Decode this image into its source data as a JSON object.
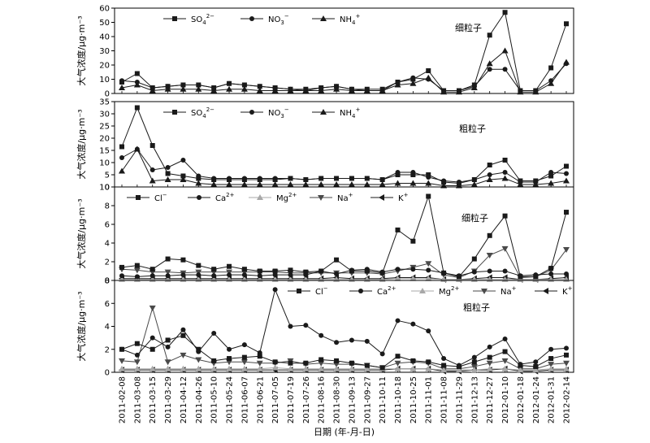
{
  "dates": [
    "2011-02-08",
    "2011-03-08",
    "2011-03-15",
    "2011-03-29",
    "2011-04-12",
    "2011-04-26",
    "2011-05-10",
    "2011-05-24",
    "2011-06-07",
    "2011-06-21",
    "2011-07-05",
    "2011-07-19",
    "2011-07-26",
    "2011-08-16",
    "2011-08-30",
    "2011-09-13",
    "2011-09-27",
    "2011-10-11",
    "2011-10-18",
    "2011-10-25",
    "2011-11-01",
    "2011-11-08",
    "2011-11-29",
    "2011-12-13",
    "2011-12-27",
    "2012-01-10",
    "2012-01-18",
    "2012-01-24",
    "2012-01-31",
    "2012-02-14"
  ],
  "shared_xlabel": "日期 (年-月-日)",
  "colors": {
    "black": "#1a1a1a",
    "gray": "#a8a8a8",
    "dark_gray": "#4a4a4a"
  },
  "chart_data": [
    {
      "type": "line",
      "panel_label": "细粒子",
      "ylabel": "大气浓度/μg·m⁻³",
      "ylim": [
        0,
        60
      ],
      "yticks": [
        "0",
        "10",
        "20",
        "30",
        "40",
        "50",
        "60"
      ],
      "legend_placement": "top",
      "series": [
        {
          "name": "SO4",
          "label_base": "SO",
          "label_sub": "4",
          "label_sup": "2−",
          "marker": "square",
          "color": "black",
          "values": [
            8,
            14,
            4,
            5,
            6,
            6,
            4,
            7,
            6,
            5,
            4,
            3,
            3,
            4,
            5,
            3,
            3,
            3,
            8,
            10,
            16,
            2,
            2,
            6,
            41,
            57,
            2,
            2,
            18,
            49
          ]
        },
        {
          "name": "NO3",
          "label_base": "NO",
          "label_sub": "3",
          "label_sup": "−",
          "marker": "circle",
          "color": "black",
          "values": [
            9,
            8,
            4,
            5,
            6,
            6,
            4,
            7,
            6,
            5,
            4,
            3,
            2,
            4,
            5,
            3,
            2,
            2,
            8,
            11,
            10,
            2,
            2,
            5,
            17,
            17,
            2,
            2,
            9,
            21
          ]
        },
        {
          "name": "NH4",
          "label_base": "NH",
          "label_sub": "4",
          "label_sup": "+",
          "marker": "triangle-up",
          "color": "black",
          "values": [
            4,
            6,
            2,
            3,
            3,
            3,
            2,
            3,
            3,
            2,
            2,
            2,
            2,
            2,
            3,
            2,
            2,
            2,
            6,
            7,
            11,
            1,
            1,
            4,
            21,
            30,
            1,
            1,
            7,
            22
          ]
        }
      ]
    },
    {
      "type": "line",
      "panel_label": "粗粒子",
      "ylabel": "大气浓度/μg·m⁻³",
      "ylim": [
        0,
        35
      ],
      "yticks": [
        "0",
        "5",
        "10",
        "15",
        "20",
        "25",
        "30",
        "35"
      ],
      "legend_placement": "top",
      "series": [
        {
          "name": "SO4",
          "label_base": "SO",
          "label_sub": "4",
          "label_sup": "2−",
          "marker": "square",
          "color": "black",
          "values": [
            16.5,
            32.5,
            17,
            5.5,
            4.5,
            3.5,
            3,
            3,
            3,
            3,
            3,
            3.5,
            3,
            3.5,
            3.5,
            3.5,
            3.5,
            3,
            5,
            5,
            5,
            2,
            1.5,
            3,
            9,
            11,
            2.5,
            2.5,
            4.5,
            8.5
          ]
        },
        {
          "name": "NO3",
          "label_base": "NO",
          "label_sub": "3",
          "label_sup": "−",
          "marker": "circle",
          "color": "black",
          "values": [
            12,
            15.5,
            7,
            8,
            11,
            4.5,
            3.5,
            3.5,
            3.5,
            3.5,
            3.5,
            3.5,
            3,
            3.5,
            3.5,
            3.5,
            3.5,
            3,
            6,
            6,
            4,
            2.5,
            2,
            3,
            5,
            6,
            2,
            2,
            6,
            5.5
          ]
        },
        {
          "name": "NH4",
          "label_base": "NH",
          "label_sub": "4",
          "label_sup": "+",
          "marker": "triangle-up",
          "color": "black",
          "values": [
            6.5,
            15.5,
            2.5,
            3,
            3,
            1.5,
            1,
            1,
            1,
            1,
            1,
            1,
            1,
            1,
            1,
            1,
            1,
            1,
            1.5,
            1.5,
            1.5,
            0.5,
            0.5,
            1,
            3,
            3.5,
            1,
            1,
            1.5,
            2.5
          ]
        }
      ]
    },
    {
      "type": "line",
      "panel_label": "细粒子",
      "ylabel": "大气浓度/μg·m⁻³",
      "ylim": [
        0,
        10
      ],
      "yticks": [
        "0",
        "2",
        "4",
        "6",
        "8",
        "10"
      ],
      "legend_placement": "top",
      "series": [
        {
          "name": "Cl",
          "label_base": "Cl",
          "label_sub": "",
          "label_sup": "−",
          "marker": "square",
          "color": "black",
          "values": [
            1.4,
            1.6,
            1.2,
            2.3,
            2.2,
            1.6,
            1.2,
            1.5,
            1.2,
            1.0,
            1.0,
            1.1,
            0.9,
            1.0,
            2.2,
            1.0,
            1.0,
            0.8,
            5.4,
            4.2,
            9.0,
            0.8,
            0.4,
            2.3,
            4.8,
            6.9,
            0.4,
            0.4,
            1.3,
            7.3
          ]
        },
        {
          "name": "Ca",
          "label_base": "Ca",
          "label_sub": "",
          "label_sup": "2+",
          "marker": "circle",
          "color": "black",
          "values": [
            0.5,
            0.4,
            0.5,
            0.5,
            0.6,
            0.6,
            0.5,
            0.6,
            0.6,
            0.5,
            0.6,
            0.6,
            0.6,
            1.0,
            0.7,
            1.1,
            1.2,
            0.9,
            1.2,
            1.2,
            1.1,
            0.8,
            0.5,
            0.9,
            1.0,
            1.0,
            0.5,
            0.6,
            0.7,
            0.7
          ]
        },
        {
          "name": "Mg",
          "label_base": "Mg",
          "label_sub": "",
          "label_sup": "2+",
          "marker": "triangle-up",
          "color": "gray",
          "values": [
            0.1,
            0.1,
            0.1,
            0.1,
            0.1,
            0.1,
            0.1,
            0.1,
            0.1,
            0.1,
            0.1,
            0.1,
            0.1,
            0.1,
            0.1,
            0.1,
            0.1,
            0.1,
            0.2,
            0.2,
            0.2,
            0.1,
            0.1,
            0.1,
            0.1,
            0.1,
            0.1,
            0.1,
            0.1,
            0.1
          ]
        },
        {
          "name": "Na",
          "label_base": "Na",
          "label_sub": "",
          "label_sup": "+",
          "marker": "triangle-down",
          "color": "dark_gray",
          "values": [
            1.2,
            1.1,
            0.9,
            0.9,
            0.8,
            0.9,
            0.9,
            0.9,
            0.9,
            0.9,
            0.9,
            0.8,
            0.8,
            0.8,
            0.8,
            0.8,
            0.8,
            0.7,
            1.0,
            1.4,
            1.8,
            0.6,
            0.3,
            1.0,
            2.7,
            3.4,
            0.3,
            0.4,
            1.1,
            3.3
          ]
        },
        {
          "name": "K",
          "label_base": "K",
          "label_sub": "",
          "label_sup": "+",
          "marker": "triangle-left",
          "color": "black",
          "values": [
            0.2,
            0.2,
            0.2,
            0.2,
            0.2,
            0.2,
            0.2,
            0.2,
            0.2,
            0.2,
            0.2,
            0.2,
            0.2,
            0.2,
            0.3,
            0.2,
            0.2,
            0.2,
            0.3,
            0.3,
            0.3,
            0.1,
            0.1,
            0.2,
            0.3,
            0.3,
            0.1,
            0.1,
            0.2,
            0.3
          ]
        }
      ]
    },
    {
      "type": "line",
      "panel_label": "粗粒子",
      "ylabel": "大气浓度/μg·m⁻³",
      "ylim": [
        0,
        8
      ],
      "yticks": [
        "0",
        "2",
        "4",
        "6",
        "8"
      ],
      "legend_placement": "top",
      "series": [
        {
          "name": "Cl",
          "label_base": "Cl",
          "label_sub": "",
          "label_sup": "−",
          "marker": "square",
          "color": "black",
          "values": [
            2.0,
            2.5,
            2.0,
            2.8,
            3.2,
            2.0,
            1.0,
            1.2,
            1.3,
            1.4,
            0.9,
            0.8,
            0.8,
            1.1,
            1.0,
            0.8,
            0.6,
            0.4,
            1.4,
            1.0,
            0.9,
            0.6,
            0.5,
            0.9,
            1.3,
            1.8,
            0.6,
            0.5,
            1.2,
            1.5
          ]
        },
        {
          "name": "Ca",
          "label_base": "Ca",
          "label_sub": "",
          "label_sup": "2+",
          "marker": "circle",
          "color": "black",
          "values": [
            2.0,
            1.5,
            3.0,
            2.2,
            3.7,
            1.8,
            3.4,
            2.0,
            2.4,
            1.7,
            7.2,
            4.0,
            4.1,
            3.2,
            2.6,
            2.8,
            2.7,
            1.6,
            4.5,
            4.2,
            3.6,
            1.2,
            0.6,
            1.3,
            2.2,
            2.9,
            0.7,
            0.9,
            2.0,
            2.1
          ]
        },
        {
          "name": "Mg",
          "label_base": "Mg",
          "label_sub": "",
          "label_sup": "2+",
          "marker": "triangle-up",
          "color": "gray",
          "values": [
            0.3,
            0.3,
            0.3,
            0.3,
            0.3,
            0.3,
            0.3,
            0.3,
            0.3,
            0.3,
            0.4,
            0.3,
            0.3,
            0.3,
            0.3,
            0.3,
            0.3,
            0.3,
            0.3,
            0.3,
            0.3,
            0.2,
            0.2,
            0.2,
            0.3,
            0.3,
            0.2,
            0.2,
            0.3,
            0.3
          ]
        },
        {
          "name": "Na",
          "label_base": "Na",
          "label_sub": "",
          "label_sup": "+",
          "marker": "triangle-down",
          "color": "dark_gray",
          "values": [
            1.0,
            0.9,
            5.6,
            0.9,
            1.5,
            1.1,
            0.8,
            0.9,
            0.9,
            0.8,
            0.8,
            1.0,
            0.7,
            0.8,
            0.7,
            0.7,
            0.6,
            0.4,
            0.8,
            0.9,
            0.8,
            0.3,
            0.3,
            0.5,
            0.8,
            1.0,
            0.3,
            0.3,
            0.7,
            0.8
          ]
        },
        {
          "name": "K",
          "label_base": "K",
          "label_sub": "",
          "label_sup": "+",
          "marker": "triangle-left",
          "color": "black",
          "values": [
            0.2,
            0.2,
            0.2,
            0.2,
            0.2,
            0.2,
            0.2,
            0.2,
            0.2,
            0.2,
            0.2,
            0.2,
            0.2,
            0.2,
            0.2,
            0.2,
            0.2,
            0.2,
            0.3,
            0.3,
            0.3,
            0.1,
            0.1,
            0.2,
            0.2,
            0.3,
            0.1,
            0.1,
            0.2,
            0.2
          ]
        }
      ]
    }
  ]
}
